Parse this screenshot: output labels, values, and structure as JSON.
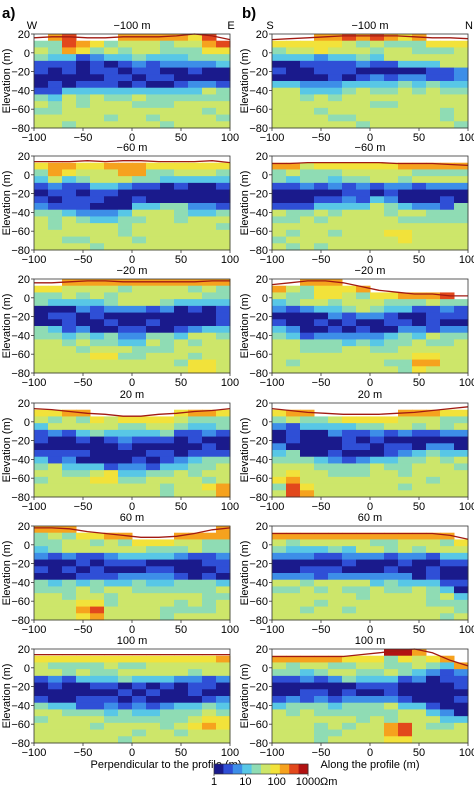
{
  "figure": {
    "column_a_label": "a)",
    "column_b_label": "b)",
    "xlabel_a": "Perpendicular to the profile (m)",
    "xlabel_b": "Along the profile (m)",
    "ylabel": "Elevation (m)",
    "colorbar": {
      "ticks": [
        "1",
        "10",
        "100",
        "1000"
      ],
      "unit": "Ωm",
      "scale": "log",
      "range": [
        1,
        1000
      ],
      "colors": [
        "#1a1a8c",
        "#2f4fd6",
        "#3d8ee8",
        "#58c7e6",
        "#8fdcb4",
        "#cde66a",
        "#f2e23a",
        "#f6a21e",
        "#e2481c",
        "#b21212"
      ]
    }
  },
  "chart_data": [
    {
      "type": "heatmap",
      "column": "a",
      "title": "−100 m",
      "left_label": "W",
      "right_label": "E",
      "x_ticks": [
        "−100",
        "−50",
        "0",
        "50",
        "100"
      ],
      "y_ticks": [
        "20",
        "0",
        "−20",
        "−40",
        "−60",
        "−80"
      ],
      "xlim": [
        -100,
        100
      ],
      "ylim": [
        -80,
        20
      ],
      "surface": [
        16,
        17,
        17,
        16,
        16,
        17,
        17,
        17,
        18,
        20,
        18,
        14
      ],
      "conductor": {
        "top": [
          -8,
          -10,
          -6,
          -2,
          -6,
          -8,
          -10,
          -10,
          -10,
          -10,
          -12,
          -14
        ],
        "bottom": [
          -46,
          -48,
          -40,
          -34,
          -38,
          -40,
          -40,
          -40,
          -38,
          -36,
          -34,
          -34
        ]
      },
      "hotspots": [
        {
          "x": -60,
          "y": 8,
          "level": 8
        },
        {
          "x": 85,
          "y": 10,
          "level": 8
        }
      ]
    },
    {
      "type": "heatmap",
      "column": "b",
      "title": "−100 m",
      "left_label": "S",
      "right_label": "N",
      "x_ticks": [
        "−100",
        "−50",
        "0",
        "50",
        "100"
      ],
      "y_ticks": [
        "20",
        "0",
        "−20",
        "−40",
        "−60",
        "−80"
      ],
      "xlim": [
        -100,
        100
      ],
      "ylim": [
        -80,
        20
      ],
      "surface": [
        14,
        15,
        16,
        17,
        18,
        18,
        18,
        18,
        17,
        16,
        16,
        15
      ],
      "conductor": {
        "top": [
          -8,
          -8,
          -6,
          -4,
          -6,
          -8,
          -10,
          -12,
          -14,
          -16,
          -18,
          -18
        ],
        "bottom": [
          -30,
          -32,
          -36,
          -36,
          -34,
          -32,
          -30,
          -30,
          -28,
          -28,
          -28,
          -30
        ]
      },
      "hotspots": [
        {
          "x": -40,
          "y": 10,
          "level": 7
        }
      ]
    },
    {
      "type": "heatmap",
      "column": "a",
      "title": "−60 m",
      "x_ticks": [
        "−100",
        "−50",
        "0",
        "50",
        "100"
      ],
      "y_ticks": [
        "20",
        "0",
        "−20",
        "−40",
        "−60",
        "−80"
      ],
      "xlim": [
        -100,
        100
      ],
      "ylim": [
        -80,
        20
      ],
      "surface": [
        14,
        14,
        14,
        15,
        14,
        15,
        15,
        14,
        14,
        14,
        15,
        13
      ],
      "conductor": {
        "top": [
          -10,
          -10,
          -10,
          -12,
          -14,
          -12,
          -8,
          -8,
          -8,
          -8,
          -8,
          -10
        ],
        "bottom": [
          -36,
          -36,
          -38,
          -42,
          -46,
          -40,
          -32,
          -30,
          -32,
          -36,
          -36,
          -34
        ]
      },
      "hotspots": [
        {
          "x": -75,
          "y": 4,
          "level": 7
        },
        {
          "x": 0,
          "y": 4,
          "level": 7
        }
      ]
    },
    {
      "type": "heatmap",
      "column": "b",
      "title": "−60 m",
      "x_ticks": [
        "−100",
        "−50",
        "0",
        "50",
        "100"
      ],
      "y_ticks": [
        "20",
        "0",
        "−20",
        "−40",
        "−60",
        "−80"
      ],
      "xlim": [
        -100,
        100
      ],
      "ylim": [
        -80,
        20
      ],
      "surface": [
        12,
        12,
        13,
        13,
        13,
        13,
        13,
        12,
        12,
        12,
        11,
        10
      ],
      "conductor": {
        "top": [
          -10,
          -10,
          -10,
          -10,
          -10,
          -12,
          -12,
          -12,
          -12,
          -12,
          -12,
          -12
        ],
        "bottom": [
          -34,
          -34,
          -34,
          -32,
          -30,
          -28,
          -26,
          -30,
          -34,
          -34,
          -34,
          -32
        ]
      },
      "hotspots": [
        {
          "x": 25,
          "y": -62,
          "level": 6
        }
      ]
    },
    {
      "type": "heatmap",
      "column": "a",
      "title": "−20 m",
      "x_ticks": [
        "−100",
        "−50",
        "0",
        "50",
        "100"
      ],
      "y_ticks": [
        "20",
        "0",
        "−20",
        "−40",
        "−60",
        "−80"
      ],
      "xlim": [
        -100,
        100
      ],
      "ylim": [
        -80,
        20
      ],
      "surface": [
        16,
        16,
        17,
        18,
        18,
        17,
        17,
        17,
        17,
        17,
        18,
        18
      ],
      "conductor": {
        "top": [
          -6,
          -6,
          -8,
          -10,
          -10,
          -12,
          -12,
          -10,
          -8,
          -8,
          -6,
          -6
        ],
        "bottom": [
          -30,
          -32,
          -36,
          -38,
          -40,
          -42,
          -42,
          -40,
          -38,
          -34,
          -30,
          -28
        ]
      },
      "hotspots": [
        {
          "x": -30,
          "y": -62,
          "level": 6
        },
        {
          "x": 75,
          "y": -70,
          "level": 6
        }
      ]
    },
    {
      "type": "heatmap",
      "column": "b",
      "title": "−20 m",
      "x_ticks": [
        "−100",
        "−50",
        "0",
        "50",
        "100"
      ],
      "y_ticks": [
        "20",
        "0",
        "−20",
        "−40",
        "−60",
        "−80"
      ],
      "xlim": [
        -100,
        100
      ],
      "ylim": [
        -80,
        20
      ],
      "surface": [
        14,
        16,
        18,
        18,
        16,
        12,
        8,
        6,
        4,
        4,
        2,
        2
      ],
      "conductor": {
        "top": [
          -8,
          -10,
          -12,
          -16,
          -18,
          -18,
          -16,
          -14,
          -12,
          -12,
          -12,
          -12
        ],
        "bottom": [
          -30,
          -36,
          -42,
          -44,
          -44,
          -44,
          -42,
          -38,
          -36,
          -34,
          -34,
          -36
        ]
      },
      "hotspots": [
        {
          "x": -40,
          "y": 6,
          "level": 7
        },
        {
          "x": 55,
          "y": -68,
          "level": 7
        }
      ]
    },
    {
      "type": "heatmap",
      "column": "a",
      "title": "20 m",
      "x_ticks": [
        "−100",
        "−50",
        "0",
        "50",
        "100"
      ],
      "y_ticks": [
        "20",
        "0",
        "−20",
        "−40",
        "−60",
        "−80"
      ],
      "xlim": [
        -100,
        100
      ],
      "ylim": [
        -80,
        20
      ],
      "surface": [
        14,
        13,
        11,
        9,
        8,
        6,
        6,
        8,
        9,
        11,
        12,
        14
      ],
      "conductor": {
        "top": [
          -8,
          -10,
          -12,
          -14,
          -16,
          -16,
          -16,
          -14,
          -12,
          -10,
          -8,
          -8
        ],
        "bottom": [
          -36,
          -40,
          -44,
          -46,
          -48,
          -50,
          -50,
          -48,
          -44,
          -40,
          -36,
          -34
        ]
      },
      "hotspots": [
        {
          "x": -25,
          "y": -62,
          "level": 6
        },
        {
          "x": 90,
          "y": -72,
          "level": 7
        }
      ]
    },
    {
      "type": "heatmap",
      "column": "b",
      "title": "20 m",
      "x_ticks": [
        "−100",
        "−50",
        "0",
        "50",
        "100"
      ],
      "y_ticks": [
        "20",
        "0",
        "−20",
        "−40",
        "−60",
        "−80"
      ],
      "xlim": [
        -100,
        100
      ],
      "ylim": [
        -80,
        20
      ],
      "surface": [
        14,
        12,
        10,
        9,
        8,
        8,
        8,
        9,
        10,
        12,
        14,
        16
      ],
      "conductor": {
        "top": [
          -2,
          -4,
          -6,
          -8,
          -10,
          -10,
          -12,
          -12,
          -12,
          -12,
          -12,
          -10
        ],
        "bottom": [
          -26,
          -32,
          -38,
          -40,
          -42,
          -42,
          -40,
          -36,
          -32,
          -30,
          -30,
          -34
        ]
      },
      "hotspots": [
        {
          "x": -80,
          "y": -62,
          "level": 7
        },
        {
          "x": -75,
          "y": -74,
          "level": 8
        }
      ]
    },
    {
      "type": "heatmap",
      "column": "a",
      "title": "60 m",
      "x_ticks": [
        "−100",
        "−50",
        "0",
        "50",
        "100"
      ],
      "y_ticks": [
        "20",
        "0",
        "−20",
        "−40",
        "−60",
        "−80"
      ],
      "xlim": [
        -100,
        100
      ],
      "ylim": [
        -80,
        20
      ],
      "surface": [
        18,
        18,
        17,
        14,
        12,
        10,
        8,
        8,
        9,
        12,
        16,
        18
      ],
      "conductor": {
        "top": [
          -10,
          -10,
          -12,
          -12,
          -12,
          -12,
          -14,
          -14,
          -12,
          -12,
          -10,
          -10
        ],
        "bottom": [
          -38,
          -38,
          -38,
          -36,
          -36,
          -36,
          -36,
          -36,
          -36,
          -38,
          -40,
          -40
        ]
      },
      "hotspots": [
        {
          "x": -40,
          "y": -70,
          "level": 9
        },
        {
          "x": 90,
          "y": 14,
          "level": 8
        }
      ]
    },
    {
      "type": "heatmap",
      "column": "b",
      "title": "60 m",
      "x_ticks": [
        "−100",
        "−50",
        "0",
        "50",
        "100"
      ],
      "y_ticks": [
        "20",
        "0",
        "−20",
        "−40",
        "−60",
        "−80"
      ],
      "xlim": [
        -100,
        100
      ],
      "ylim": [
        -80,
        20
      ],
      "surface": [
        12,
        12,
        12,
        12,
        12,
        12,
        12,
        12,
        12,
        12,
        10,
        6
      ],
      "conductor": {
        "top": [
          -10,
          -10,
          -10,
          -10,
          -10,
          -10,
          -12,
          -12,
          -12,
          -12,
          -14,
          -16
        ],
        "bottom": [
          -34,
          -34,
          -34,
          -34,
          -34,
          -34,
          -36,
          -36,
          -38,
          -40,
          -48,
          -56
        ]
      },
      "hotspots": [
        {
          "x": 0,
          "y": 14,
          "level": 7
        }
      ]
    },
    {
      "type": "heatmap",
      "column": "a",
      "title": "100 m",
      "x_ticks": [
        "−100",
        "−50",
        "0",
        "50",
        "100"
      ],
      "y_ticks": [
        "20",
        "0",
        "−20",
        "−40",
        "−60",
        "−80"
      ],
      "xlim": [
        -100,
        100
      ],
      "ylim": [
        -80,
        20
      ],
      "surface": [
        14,
        14,
        14,
        14,
        14,
        14,
        14,
        14,
        14,
        14,
        14,
        14
      ],
      "conductor": {
        "top": [
          -12,
          -12,
          -12,
          -14,
          -14,
          -14,
          -14,
          -14,
          -12,
          -12,
          -12,
          -12
        ],
        "bottom": [
          -36,
          -38,
          -40,
          -42,
          -44,
          -44,
          -44,
          -42,
          -40,
          -38,
          -36,
          -34
        ]
      },
      "hotspots": [
        {
          "x": 80,
          "y": -60,
          "level": 7
        }
      ]
    },
    {
      "type": "heatmap",
      "column": "b",
      "title": "100 m",
      "x_ticks": [
        "−100",
        "−50",
        "0",
        "50",
        "100"
      ],
      "y_ticks": [
        "20",
        "0",
        "−20",
        "−40",
        "−60",
        "−80"
      ],
      "xlim": [
        -100,
        100
      ],
      "ylim": [
        -80,
        20
      ],
      "surface": [
        12,
        12,
        12,
        12,
        12,
        14,
        16,
        18,
        20,
        16,
        8,
        2
      ],
      "conductor": {
        "top": [
          -10,
          -10,
          -10,
          -12,
          -12,
          -14,
          -14,
          -14,
          -10,
          -4,
          -2,
          -2
        ],
        "bottom": [
          -36,
          -36,
          -36,
          -36,
          -34,
          -34,
          -34,
          -34,
          -36,
          -44,
          -52,
          -54
        ]
      },
      "hotspots": [
        {
          "x": 30,
          "y": -68,
          "level": 9
        },
        {
          "x": 30,
          "y": 18,
          "level": 9
        }
      ]
    }
  ]
}
